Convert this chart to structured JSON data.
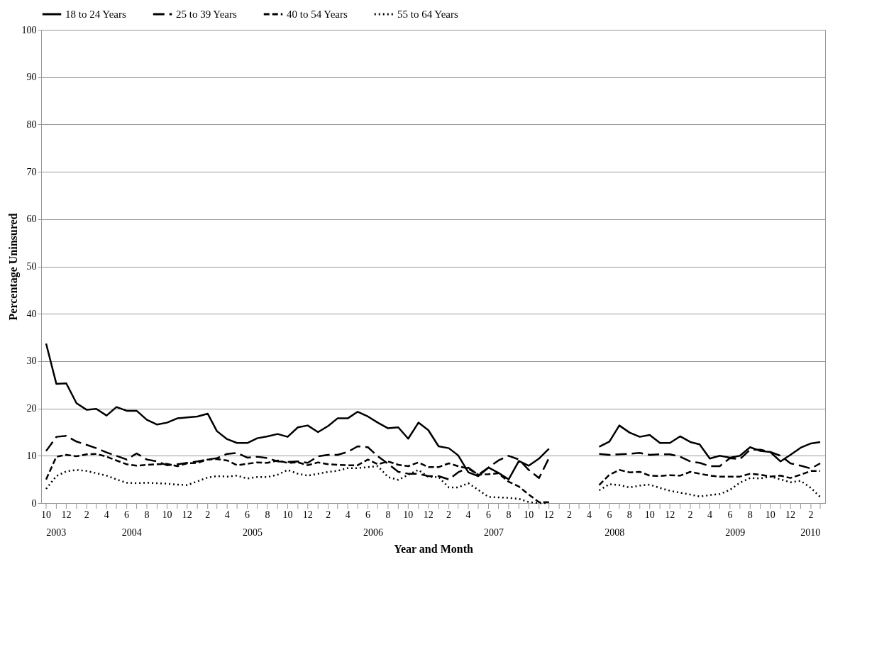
{
  "chart_data": {
    "type": "line",
    "xlabel": "Year and Month",
    "ylabel": "Percentage Uninsured",
    "x": [
      "2003-10",
      "2003-11",
      "2003-12",
      "2004-01",
      "2004-02",
      "2004-03",
      "2004-04",
      "2004-05",
      "2004-06",
      "2004-07",
      "2004-08",
      "2004-09",
      "2004-10",
      "2004-11",
      "2004-12",
      "2005-01",
      "2005-02",
      "2005-03",
      "2005-04",
      "2005-05",
      "2005-06",
      "2005-07",
      "2005-08",
      "2005-09",
      "2005-10",
      "2005-11",
      "2005-12",
      "2006-01",
      "2006-02",
      "2006-03",
      "2006-04",
      "2006-05",
      "2006-06",
      "2006-07",
      "2006-08",
      "2006-09",
      "2006-10",
      "2006-11",
      "2006-12",
      "2007-01",
      "2007-02",
      "2007-03",
      "2007-04",
      "2007-05",
      "2007-06",
      "2007-07",
      "2007-08",
      "2007-09",
      "2007-10",
      "2007-11",
      "2007-12",
      "2008-01",
      "2008-02",
      "2008-03",
      "2008-04",
      "2008-05",
      "2008-06",
      "2008-07",
      "2008-08",
      "2008-09",
      "2008-10",
      "2008-11",
      "2008-12",
      "2009-01",
      "2009-02",
      "2009-03",
      "2009-04",
      "2009-05",
      "2009-06",
      "2009-07",
      "2009-08",
      "2009-09",
      "2009-10",
      "2009-11",
      "2009-12",
      "2010-01",
      "2010-02",
      "2010-03"
    ],
    "series": [
      {
        "name": "18 to 24 Years",
        "color": "#000000",
        "line_style": "solid",
        "values": [
          33.7,
          25.2,
          25.3,
          21.1,
          19.7,
          19.9,
          18.5,
          20.3,
          19.5,
          19.5,
          17.6,
          16.6,
          17.0,
          17.9,
          18.1,
          18.3,
          18.9,
          15.2,
          13.5,
          12.7,
          12.7,
          13.7,
          14.1,
          14.6,
          14.0,
          16.0,
          16.4,
          15.0,
          16.3,
          17.9,
          17.9,
          19.3,
          18.3,
          17.0,
          15.8,
          16.0,
          13.6,
          17.0,
          15.4,
          12.0,
          11.6,
          10.1,
          6.5,
          5.7,
          7.5,
          6.4,
          5.0,
          8.9,
          7.9,
          9.4,
          11.5,
          null,
          null,
          null,
          null,
          11.9,
          13.0,
          16.4,
          14.9,
          14.0,
          14.4,
          12.7,
          12.7,
          14.1,
          12.9,
          12.4,
          9.4,
          10.0,
          9.6,
          10.0,
          11.8,
          11.0,
          10.8,
          8.8,
          10.2,
          11.7,
          12.6,
          12.9
        ]
      },
      {
        "name": "25 to 39 Years",
        "color": "#000000",
        "line_style": "dashed",
        "values": [
          11.0,
          14.0,
          14.2,
          13.0,
          12.3,
          11.6,
          10.7,
          10.0,
          9.2,
          10.5,
          9.2,
          8.8,
          8.0,
          8.2,
          8.5,
          8.8,
          9.2,
          9.5,
          10.4,
          10.6,
          9.6,
          9.8,
          9.5,
          8.8,
          8.7,
          8.8,
          8.5,
          9.9,
          10.2,
          10.2,
          10.8,
          12.0,
          11.8,
          9.9,
          8.3,
          6.6,
          6.2,
          6.2,
          5.7,
          5.7,
          5.0,
          6.5,
          7.5,
          6.0,
          7.5,
          9.0,
          10.0,
          9.2,
          7.0,
          5.3,
          9.5,
          null,
          null,
          null,
          null,
          10.4,
          10.2,
          10.3,
          10.4,
          10.6,
          10.2,
          10.3,
          10.3,
          9.8,
          8.8,
          8.5,
          7.8,
          7.8,
          9.5,
          9.3,
          11.3,
          11.3,
          10.8,
          10.0,
          8.4,
          7.9,
          7.3,
          8.4
        ]
      },
      {
        "name": "40 to 54 Years",
        "color": "#000000",
        "line_style": "dashed",
        "values": [
          5.0,
          9.8,
          10.2,
          9.9,
          10.3,
          10.4,
          9.8,
          9.0,
          8.2,
          7.9,
          8.1,
          8.2,
          8.3,
          7.8,
          8.4,
          8.5,
          9.2,
          9.3,
          9.0,
          8.0,
          8.3,
          8.6,
          8.5,
          9.0,
          8.5,
          8.6,
          8.0,
          8.6,
          8.2,
          8.1,
          8.0,
          8.0,
          9.2,
          8.2,
          8.8,
          8.1,
          7.8,
          8.6,
          7.6,
          7.6,
          8.4,
          7.8,
          7.3,
          6.0,
          6.1,
          6.3,
          4.5,
          3.5,
          1.8,
          0.2,
          0.2,
          null,
          null,
          null,
          null,
          3.8,
          6.0,
          7.0,
          6.5,
          6.6,
          5.8,
          5.7,
          5.9,
          5.8,
          6.6,
          6.2,
          5.8,
          5.6,
          5.6,
          5.6,
          6.2,
          6.0,
          5.6,
          5.8,
          5.3,
          6.0,
          6.8,
          6.8
        ]
      },
      {
        "name": "55 to 64 Years",
        "color": "#000000",
        "line_style": "dotted",
        "values": [
          3.0,
          5.7,
          6.7,
          7.0,
          6.8,
          6.3,
          5.8,
          5.0,
          4.3,
          4.2,
          4.3,
          4.2,
          4.1,
          3.9,
          3.8,
          4.6,
          5.4,
          5.7,
          5.6,
          5.8,
          5.2,
          5.5,
          5.5,
          6.0,
          7.0,
          6.2,
          5.8,
          6.2,
          6.6,
          6.8,
          7.4,
          7.4,
          7.6,
          7.8,
          5.5,
          4.9,
          6.0,
          7.0,
          5.5,
          5.5,
          3.3,
          3.3,
          4.2,
          2.8,
          1.3,
          1.2,
          1.1,
          0.9,
          0.2,
          0,
          0,
          null,
          null,
          null,
          null,
          2.7,
          4.0,
          3.8,
          3.3,
          3.7,
          3.9,
          3.2,
          2.6,
          2.2,
          1.8,
          1.4,
          1.7,
          1.9,
          2.8,
          4.3,
          5.3,
          5.2,
          5.6,
          5.0,
          4.4,
          4.7,
          3.2,
          1.3
        ]
      }
    ],
    "xlim": [
      "2003-09-16",
      "2010-03-16"
    ],
    "xticks": [
      {
        "value": "2003-10",
        "label": "10"
      },
      {
        "value": "2003-11",
        "label": null
      },
      {
        "value": "2003-12",
        "label": "12"
      },
      {
        "value": "2004-01",
        "label": null
      },
      {
        "value": "2004-02",
        "label": "2"
      },
      {
        "value": "2004-03",
        "label": null
      },
      {
        "value": "2004-04",
        "label": "4"
      },
      {
        "value": "2004-05",
        "label": null
      },
      {
        "value": "2004-06",
        "label": "6"
      },
      {
        "value": "2004-07",
        "label": null
      },
      {
        "value": "2004-08",
        "label": "8"
      },
      {
        "value": "2004-09",
        "label": null
      },
      {
        "value": "2004-10",
        "label": "10"
      },
      {
        "value": "2004-11",
        "label": null
      },
      {
        "value": "2004-12",
        "label": "12"
      },
      {
        "value": "2005-01",
        "label": null
      },
      {
        "value": "2005-02",
        "label": "2"
      },
      {
        "value": "2005-03",
        "label": null
      },
      {
        "value": "2005-04",
        "label": "4"
      },
      {
        "value": "2005-05",
        "label": null
      },
      {
        "value": "2005-06",
        "label": "6"
      },
      {
        "value": "2005-07",
        "label": null
      },
      {
        "value": "2005-08",
        "label": "8"
      },
      {
        "value": "2005-09",
        "label": null
      },
      {
        "value": "2005-10",
        "label": "10"
      },
      {
        "value": "2005-11",
        "label": null
      },
      {
        "value": "2005-12",
        "label": "12"
      },
      {
        "value": "2006-01",
        "label": null
      },
      {
        "value": "2006-02",
        "label": "2"
      },
      {
        "value": "2006-03",
        "label": null
      },
      {
        "value": "2006-04",
        "label": "4"
      },
      {
        "value": "2006-05",
        "label": null
      },
      {
        "value": "2006-06",
        "label": "6"
      },
      {
        "value": "2006-07",
        "label": null
      },
      {
        "value": "2006-08",
        "label": "8"
      },
      {
        "value": "2006-09",
        "label": null
      },
      {
        "value": "2006-10",
        "label": "10"
      },
      {
        "value": "2006-11",
        "label": null
      },
      {
        "value": "2006-12",
        "label": "12"
      },
      {
        "value": "2007-01",
        "label": null
      },
      {
        "value": "2007-02",
        "label": "2"
      },
      {
        "value": "2007-03",
        "label": null
      },
      {
        "value": "2007-04",
        "label": "4"
      },
      {
        "value": "2007-05",
        "label": null
      },
      {
        "value": "2007-06",
        "label": "6"
      },
      {
        "value": "2007-07",
        "label": null
      },
      {
        "value": "2007-08",
        "label": "8"
      },
      {
        "value": "2007-09",
        "label": null
      },
      {
        "value": "2007-10",
        "label": "10"
      },
      {
        "value": "2007-11",
        "label": null
      },
      {
        "value": "2007-12",
        "label": "12"
      },
      {
        "value": "2008-01",
        "label": null
      },
      {
        "value": "2008-02",
        "label": "2"
      },
      {
        "value": "2008-03",
        "label": null
      },
      {
        "value": "2008-04",
        "label": "4"
      },
      {
        "value": "2008-05",
        "label": null
      },
      {
        "value": "2008-06",
        "label": "6"
      },
      {
        "value": "2008-07",
        "label": null
      },
      {
        "value": "2008-08",
        "label": "8"
      },
      {
        "value": "2008-09",
        "label": null
      },
      {
        "value": "2008-10",
        "label": "10"
      },
      {
        "value": "2008-11",
        "label": null
      },
      {
        "value": "2008-12",
        "label": "12"
      },
      {
        "value": "2009-01",
        "label": null
      },
      {
        "value": "2009-02",
        "label": "2"
      },
      {
        "value": "2009-03",
        "label": null
      },
      {
        "value": "2009-04",
        "label": "4"
      },
      {
        "value": "2009-05",
        "label": null
      },
      {
        "value": "2009-06",
        "label": "6"
      },
      {
        "value": "2009-07",
        "label": null
      },
      {
        "value": "2009-08",
        "label": "8"
      },
      {
        "value": "2009-09",
        "label": null
      },
      {
        "value": "2009-10",
        "label": "10"
      },
      {
        "value": "2009-11",
        "label": null
      },
      {
        "value": "2009-12",
        "label": "12"
      },
      {
        "value": "2010-01",
        "label": null
      },
      {
        "value": "2010-02",
        "label": "2"
      },
      {
        "value": "2010-03",
        "label": null
      }
    ],
    "ylim": [
      0,
      100
    ],
    "yticks": [
      0,
      10,
      20,
      30,
      40,
      50,
      60,
      70,
      80,
      90,
      100
    ],
    "annotations": [
      "2003",
      "2004",
      "2005",
      "2006",
      "2007",
      "2008",
      "2009",
      "2010"
    ],
    "grid": "y",
    "legend": "top"
  }
}
